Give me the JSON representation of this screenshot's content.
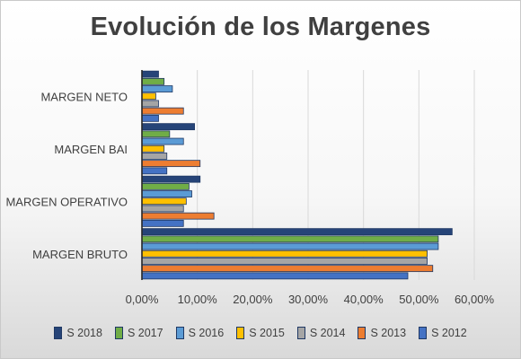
{
  "chart_data": {
    "type": "bar",
    "orientation": "horizontal",
    "title": "Evolución de los Margenes",
    "xlabel": "",
    "ylabel": "",
    "xlim": [
      0,
      60
    ],
    "x_ticks": [
      "0,00%",
      "10,00%",
      "20,00%",
      "30,00%",
      "40,00%",
      "50,00%",
      "60,00%"
    ],
    "x_tick_values": [
      0,
      10,
      20,
      30,
      40,
      50,
      60
    ],
    "categories": [
      "MARGEN BRUTO",
      "MARGEN OPERATIVO",
      "MARGEN BAI",
      "MARGEN NETO"
    ],
    "grid": true,
    "legend_position": "bottom",
    "series": [
      {
        "name": "S 2012",
        "color": "#4472c4",
        "values": [
          48.0,
          7.5,
          4.5,
          3.0
        ]
      },
      {
        "name": "S 2013",
        "color": "#ed7d31",
        "values": [
          52.5,
          13.0,
          10.5,
          7.5
        ]
      },
      {
        "name": "S 2014",
        "color": "#a5a5a5",
        "values": [
          51.5,
          7.5,
          4.5,
          3.0
        ]
      },
      {
        "name": "S 2015",
        "color": "#ffc000",
        "values": [
          51.5,
          8.0,
          4.0,
          2.5
        ]
      },
      {
        "name": "S 2016",
        "color": "#5b9bd5",
        "values": [
          53.5,
          9.0,
          7.5,
          5.5
        ]
      },
      {
        "name": "S 2017",
        "color": "#70ad47",
        "values": [
          53.5,
          8.5,
          5.0,
          4.0
        ]
      },
      {
        "name": "S 2018",
        "color": "#264478",
        "values": [
          56.0,
          10.5,
          9.5,
          3.0
        ]
      }
    ],
    "legend_order": [
      "S 2018",
      "S 2017",
      "S 2016",
      "S 2015",
      "S 2014",
      "S 2013",
      "S 2012"
    ]
  }
}
